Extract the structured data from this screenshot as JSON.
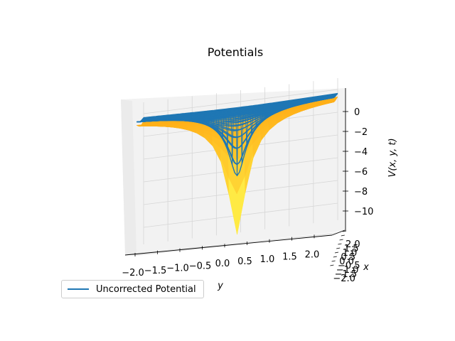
{
  "chart_data": {
    "type": "surface3d",
    "title": "Potentials",
    "xlabel": "y",
    "ylabel": "x",
    "zlabel": "V(x, y, t)",
    "x_axis_ticks": [
      "−2.0",
      "−1.5",
      "−1.0",
      "−0.5",
      "0.0",
      "0.5",
      "1.0",
      "1.5",
      "2.0"
    ],
    "depth_axis_ticks": [
      "2.0",
      "1.5",
      "1.0",
      "0.5",
      "0.0",
      "−0.5",
      "−1.0",
      "−1.5",
      "−2.0"
    ],
    "z_axis_ticks": [
      "0",
      "−2",
      "−4",
      "−6",
      "−8",
      "−10"
    ],
    "xlim": [
      -2.0,
      2.0
    ],
    "ylim": [
      -2.0,
      2.0
    ],
    "zlim": [
      -11.5,
      1.0
    ],
    "surface_min": -11.5,
    "surface_max": 0.0,
    "grid": true,
    "legend_position": "lower-left",
    "series": [
      {
        "name": "",
        "style": "filled surface",
        "colormap": "yellow-orange"
      },
      {
        "name": "Uncorrected Potential",
        "style": "wireframe",
        "color": "#1f77b4"
      }
    ]
  },
  "legend": {
    "items": [
      {
        "label": "Uncorrected Potential",
        "color": "#1f77b4"
      }
    ]
  }
}
